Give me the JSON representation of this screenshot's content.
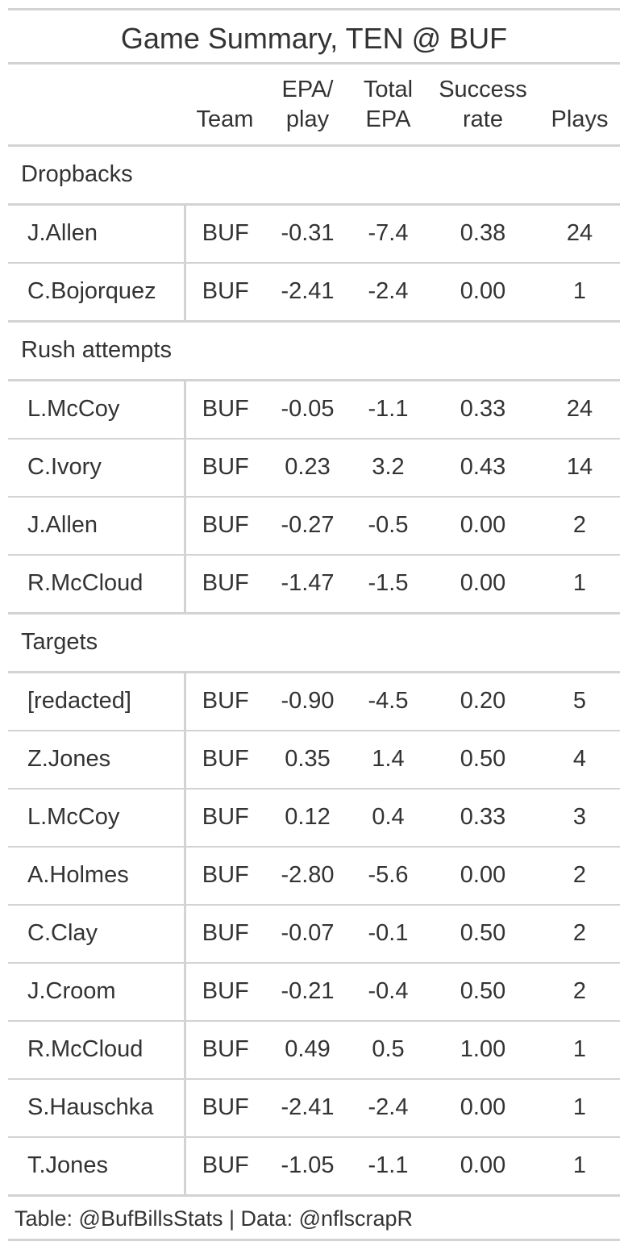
{
  "chart_data": {
    "type": "table",
    "title": "Game Summary, TEN @ BUF",
    "columns": [
      {
        "key": "player",
        "label": [
          "",
          ""
        ]
      },
      {
        "key": "team",
        "label": [
          "Team"
        ]
      },
      {
        "key": "epa_play",
        "label": [
          "EPA/",
          "play"
        ]
      },
      {
        "key": "total_epa",
        "label": [
          "Total",
          "EPA"
        ]
      },
      {
        "key": "success",
        "label": [
          "Success",
          "rate"
        ]
      },
      {
        "key": "plays",
        "label": [
          "Plays"
        ]
      }
    ],
    "groups": [
      {
        "name": "Dropbacks",
        "rows": [
          [
            "J.Allen",
            "BUF",
            "-0.31",
            "-7.4",
            "0.38",
            "24"
          ],
          [
            "C.Bojorquez",
            "BUF",
            "-2.41",
            "-2.4",
            "0.00",
            "1"
          ]
        ]
      },
      {
        "name": "Rush attempts",
        "rows": [
          [
            "L.McCoy",
            "BUF",
            "-0.05",
            "-1.1",
            "0.33",
            "24"
          ],
          [
            "C.Ivory",
            "BUF",
            "0.23",
            "3.2",
            "0.43",
            "14"
          ],
          [
            "J.Allen",
            "BUF",
            "-0.27",
            "-0.5",
            "0.00",
            "2"
          ],
          [
            "R.McCloud",
            "BUF",
            "-1.47",
            "-1.5",
            "0.00",
            "1"
          ]
        ]
      },
      {
        "name": "Targets",
        "rows": [
          [
            "[redacted]",
            "BUF",
            "-0.90",
            "-4.5",
            "0.20",
            "5"
          ],
          [
            "Z.Jones",
            "BUF",
            "0.35",
            "1.4",
            "0.50",
            "4"
          ],
          [
            "L.McCoy",
            "BUF",
            "0.12",
            "0.4",
            "0.33",
            "3"
          ],
          [
            "A.Holmes",
            "BUF",
            "-2.80",
            "-5.6",
            "0.00",
            "2"
          ],
          [
            "C.Clay",
            "BUF",
            "-0.07",
            "-0.1",
            "0.50",
            "2"
          ],
          [
            "J.Croom",
            "BUF",
            "-0.21",
            "-0.4",
            "0.50",
            "2"
          ],
          [
            "R.McCloud",
            "BUF",
            "0.49",
            "0.5",
            "1.00",
            "1"
          ],
          [
            "S.Hauschka",
            "BUF",
            "-2.41",
            "-2.4",
            "0.00",
            "1"
          ],
          [
            "T.Jones",
            "BUF",
            "-1.05",
            "-1.1",
            "0.00",
            "1"
          ]
        ]
      }
    ],
    "source_note": "Table: @BufBillsStats | Data: @nflscrapR"
  },
  "colors": {
    "text": "#333333",
    "rule": "#d3d3d3",
    "background": "#ffffff"
  }
}
